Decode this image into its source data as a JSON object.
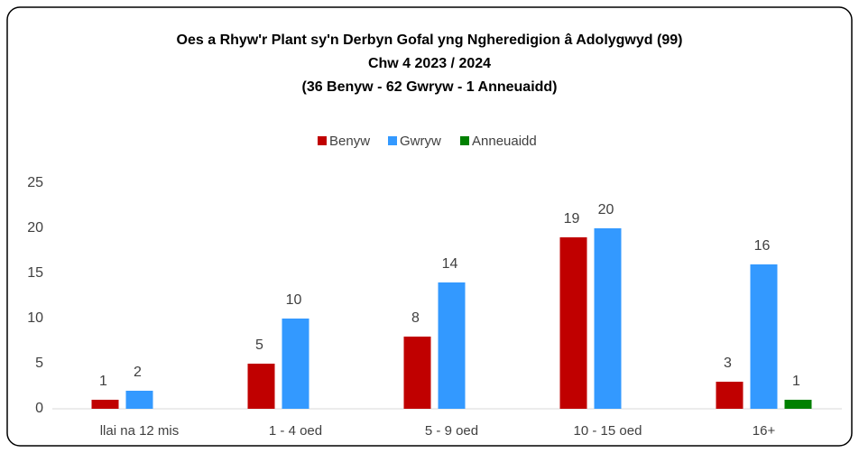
{
  "chart_data": {
    "type": "bar",
    "title": [
      "Oes a Rhyw'r Plant sy'n Derbyn Gofal yng Ngheredigion â Adolygwyd (99)",
      "Chw 4 2023 / 2024",
      "(36 Benyw - 62 Gwryw - 1 Anneuaidd)"
    ],
    "categories": [
      "llai na 12 mis",
      "1 - 4 oed",
      "5 - 9 oed",
      "10 - 15 oed",
      "16+"
    ],
    "series": [
      {
        "name": "Benyw",
        "color": "#c00000",
        "values": [
          1,
          5,
          8,
          19,
          3
        ]
      },
      {
        "name": "Gwryw",
        "color": "#3399ff",
        "values": [
          2,
          10,
          14,
          20,
          16
        ]
      },
      {
        "name": "Anneuaidd",
        "color": "#008000",
        "values": [
          null,
          null,
          null,
          null,
          1
        ]
      }
    ],
    "ylim": [
      0,
      25
    ],
    "yticks": [
      0,
      5,
      10,
      15,
      20,
      25
    ],
    "grid": false,
    "legend": "top"
  }
}
